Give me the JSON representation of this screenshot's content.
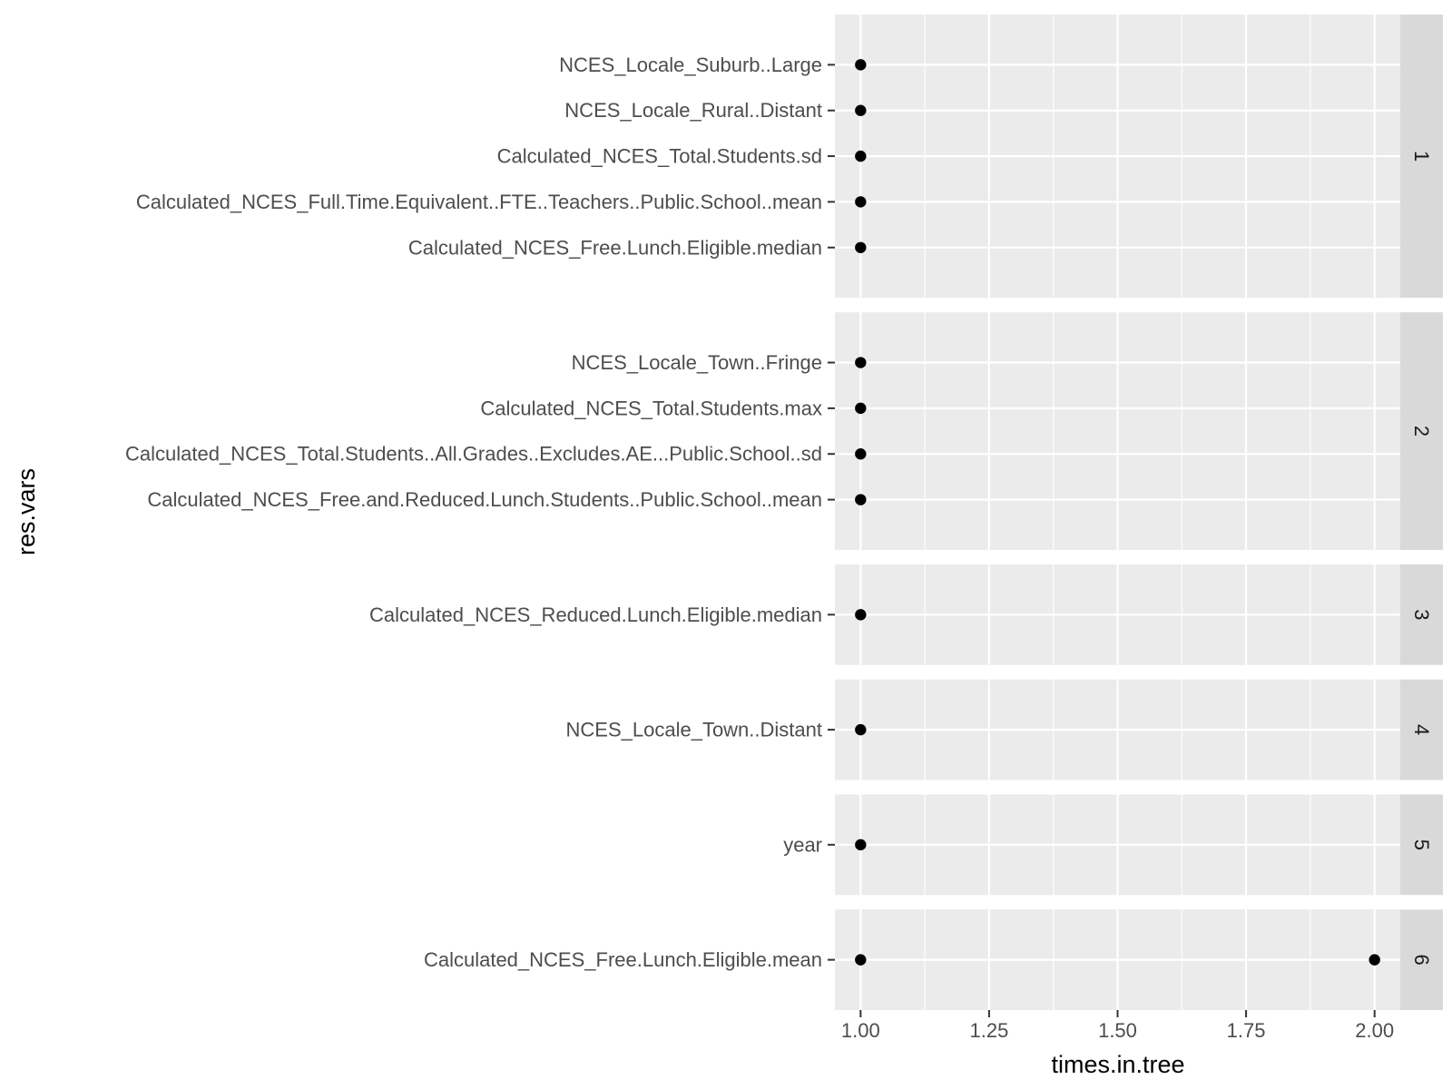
{
  "chart_data": {
    "type": "scatter",
    "xlabel": "times.in.tree",
    "ylabel": "res.vars",
    "xlim": [
      0.95,
      2.05
    ],
    "x_ticks": [
      "1.00",
      "1.25",
      "1.50",
      "1.75",
      "2.00"
    ],
    "x_tick_values": [
      1.0,
      1.25,
      1.5,
      1.75,
      2.0
    ],
    "grid": true,
    "facets": [
      {
        "label": "1",
        "rows": [
          {
            "name": "NCES_Locale_Suburb..Large",
            "values": [
              1
            ]
          },
          {
            "name": "NCES_Locale_Rural..Distant",
            "values": [
              1
            ]
          },
          {
            "name": "Calculated_NCES_Total.Students.sd",
            "values": [
              1
            ]
          },
          {
            "name": "Calculated_NCES_Full.Time.Equivalent..FTE..Teachers..Public.School..mean",
            "values": [
              1
            ]
          },
          {
            "name": "Calculated_NCES_Free.Lunch.Eligible.median",
            "values": [
              1
            ]
          }
        ]
      },
      {
        "label": "2",
        "rows": [
          {
            "name": "NCES_Locale_Town..Fringe",
            "values": [
              1
            ]
          },
          {
            "name": "Calculated_NCES_Total.Students.max",
            "values": [
              1
            ]
          },
          {
            "name": "Calculated_NCES_Total.Students..All.Grades..Excludes.AE...Public.School..sd",
            "values": [
              1
            ]
          },
          {
            "name": "Calculated_NCES_Free.and.Reduced.Lunch.Students..Public.School..mean",
            "values": [
              1
            ]
          }
        ]
      },
      {
        "label": "3",
        "rows": [
          {
            "name": "Calculated_NCES_Reduced.Lunch.Eligible.median",
            "values": [
              1
            ]
          }
        ]
      },
      {
        "label": "4",
        "rows": [
          {
            "name": "NCES_Locale_Town..Distant",
            "values": [
              1
            ]
          }
        ]
      },
      {
        "label": "5",
        "rows": [
          {
            "name": "year",
            "values": [
              1
            ]
          }
        ]
      },
      {
        "label": "6",
        "rows": [
          {
            "name": "Calculated_NCES_Free.Lunch.Eligible.mean",
            "values": [
              1,
              2
            ]
          }
        ]
      }
    ],
    "colors": {
      "panel_bg": "#ebebeb",
      "strip_bg": "#d9d9d9",
      "grid": "#ffffff",
      "point": "#000000",
      "tick": "#333333"
    }
  }
}
